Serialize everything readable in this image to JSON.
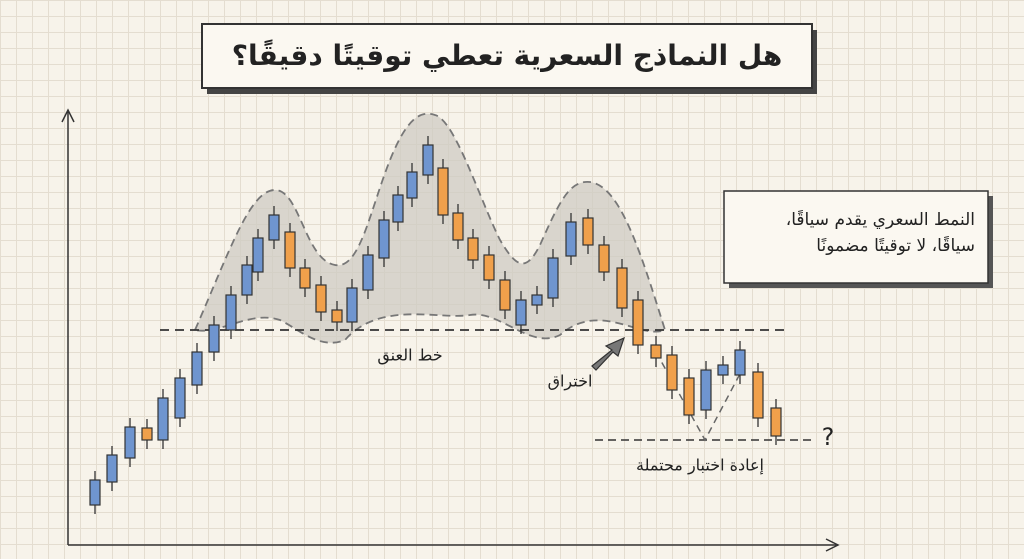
{
  "header": {
    "title": "هل النماذج السعرية تعطي توقيتًا دقيقًا؟"
  },
  "callout": {
    "lines": [
      "النمط السعري يقدم سياقًا،",
      "سياقًا، لا توقيتًا مضمونًا"
    ]
  },
  "labels": {
    "neckline": "خط العنق",
    "breakout": "اختراق",
    "retest": "إعادة اختبار محتملة",
    "question": "?"
  }
}
